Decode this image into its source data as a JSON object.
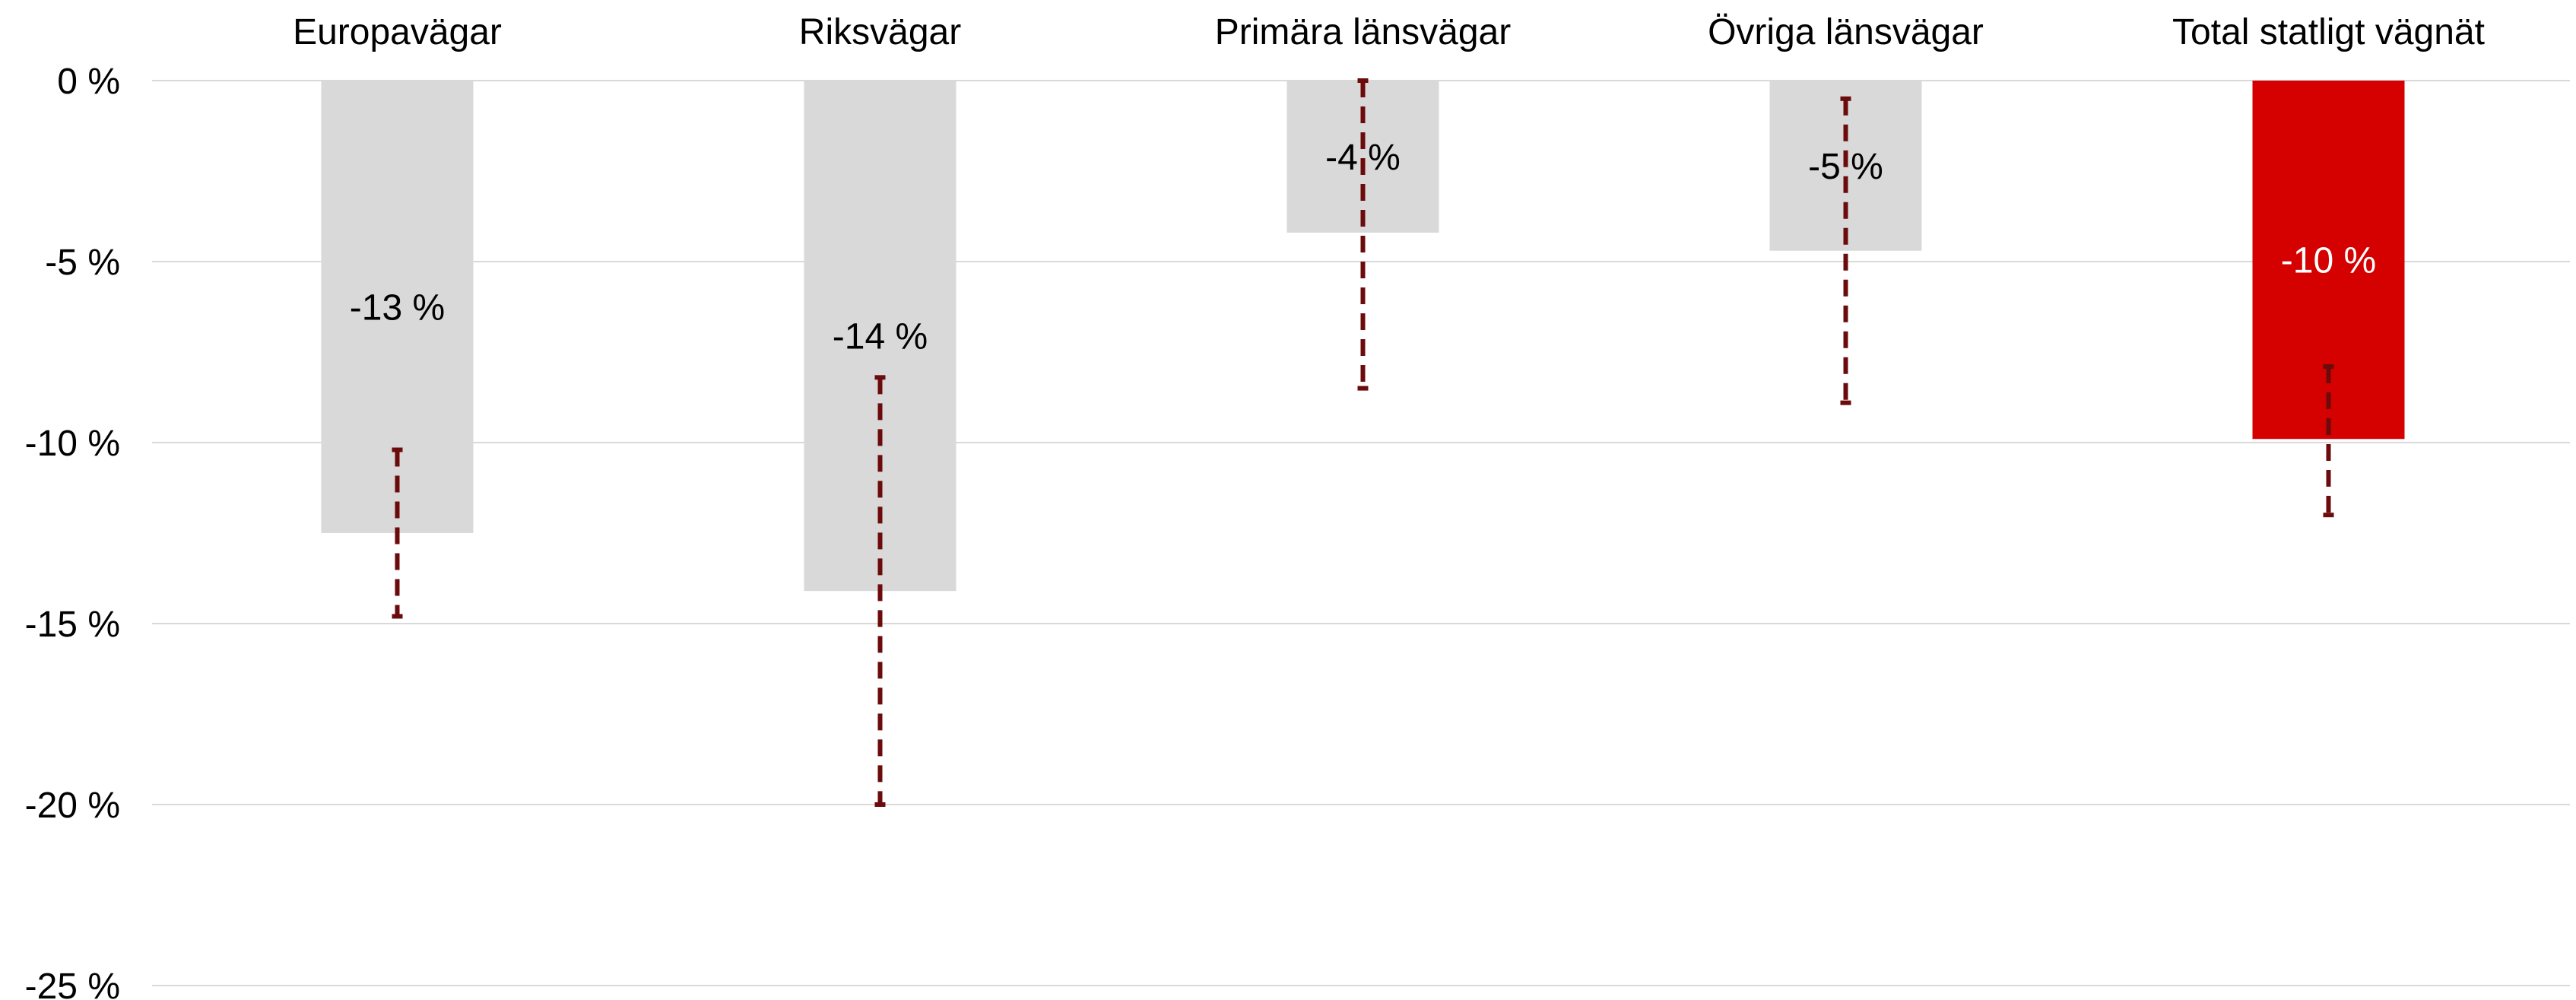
{
  "chart_data": {
    "type": "bar",
    "categories": [
      "Europavägar",
      "Riksvägar",
      "Primära länsvägar",
      "Övriga länsvägar",
      "Total statligt vägnät"
    ],
    "values": [
      -12.5,
      -14.1,
      -4.2,
      -4.7,
      -9.9
    ],
    "data_labels": [
      "-13 %",
      "-14 %",
      "-4 %",
      "-5 %",
      "-10 %"
    ],
    "error_ranges": [
      {
        "low": -14.8,
        "high": -10.2
      },
      {
        "low": -20.0,
        "high": -8.2
      },
      {
        "low": -8.5,
        "high": 0.0
      },
      {
        "low": -8.9,
        "high": -0.5
      },
      {
        "low": -12.0,
        "high": -7.9
      }
    ],
    "ylim": [
      -25,
      0
    ],
    "yticks": [
      0,
      -5,
      -10,
      -15,
      -20,
      -25
    ],
    "ytick_labels": [
      "0 %",
      "-5 %",
      "-10 %",
      "-15 %",
      "-20 %",
      "-25 %"
    ],
    "category_axis_position": "top",
    "grid": true,
    "colors": {
      "bar": "#d9d9d9",
      "highlight_bar": "#d50000",
      "error": "#6b0b0b",
      "grid": "#d9d9d9",
      "label_dark": "#000000",
      "label_light": "#ffffff"
    },
    "highlight_index": 4
  }
}
